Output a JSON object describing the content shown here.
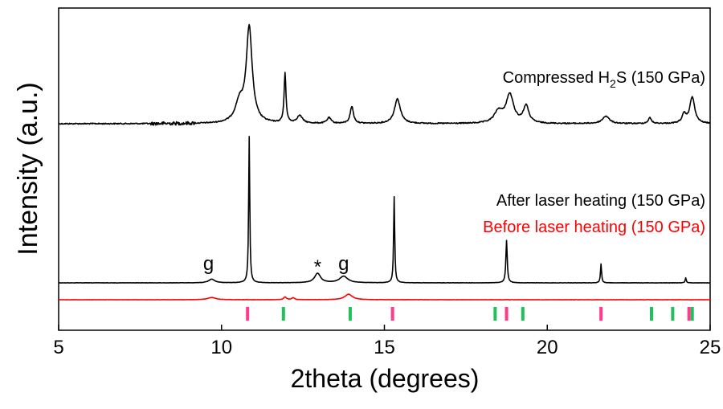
{
  "chart_data": {
    "type": "line",
    "xlabel": "2theta (degrees)",
    "ylabel": "Intensity (a.u.)",
    "xlim": [
      5,
      25
    ],
    "xticks": [
      "5",
      "10",
      "15",
      "20",
      "25"
    ],
    "series": [
      {
        "name": "Compressed H2S (150 GPa)",
        "label_parts": [
          "Compressed H",
          "2",
          "S (150 GPa)"
        ],
        "color": "#000000",
        "baseline": 0,
        "peaks": [
          {
            "x": 10.85,
            "h": 1.0,
            "w": 0.22
          },
          {
            "x": 10.55,
            "h": 0.2,
            "w": 0.3
          },
          {
            "x": 11.95,
            "h": 0.52,
            "w": 0.07
          },
          {
            "x": 12.4,
            "h": 0.08,
            "w": 0.2
          },
          {
            "x": 13.3,
            "h": 0.06,
            "w": 0.15
          },
          {
            "x": 14.0,
            "h": 0.18,
            "w": 0.12
          },
          {
            "x": 15.4,
            "h": 0.26,
            "w": 0.22
          },
          {
            "x": 18.5,
            "h": 0.12,
            "w": 0.3
          },
          {
            "x": 18.85,
            "h": 0.3,
            "w": 0.28
          },
          {
            "x": 19.35,
            "h": 0.18,
            "w": 0.2
          },
          {
            "x": 21.8,
            "h": 0.08,
            "w": 0.25
          },
          {
            "x": 23.15,
            "h": 0.06,
            "w": 0.12
          },
          {
            "x": 24.2,
            "h": 0.09,
            "w": 0.15
          },
          {
            "x": 24.45,
            "h": 0.28,
            "w": 0.18
          }
        ]
      },
      {
        "name": "After laser heating (150 GPa)",
        "color": "#000000",
        "baseline": 0,
        "peaks": [
          {
            "x": 9.7,
            "h": 0.025,
            "w": 0.22
          },
          {
            "x": 10.85,
            "h": 1.0,
            "w": 0.04
          },
          {
            "x": 12.95,
            "h": 0.065,
            "w": 0.22
          },
          {
            "x": 13.75,
            "h": 0.045,
            "w": 0.3
          },
          {
            "x": 15.3,
            "h": 0.59,
            "w": 0.04
          },
          {
            "x": 18.75,
            "h": 0.29,
            "w": 0.05
          },
          {
            "x": 21.65,
            "h": 0.13,
            "w": 0.04
          },
          {
            "x": 24.25,
            "h": 0.035,
            "w": 0.04
          }
        ]
      },
      {
        "name": "Before laser heating (150 GPa)",
        "color": "#ff0000",
        "baseline": 0,
        "peaks": [
          {
            "x": 9.7,
            "h": 0.016,
            "w": 0.3
          },
          {
            "x": 11.95,
            "h": 0.02,
            "w": 0.1
          },
          {
            "x": 12.2,
            "h": 0.014,
            "w": 0.1
          },
          {
            "x": 13.9,
            "h": 0.04,
            "w": 0.28
          }
        ]
      }
    ],
    "annotations": [
      {
        "text": "g",
        "x": 9.6
      },
      {
        "text": "*",
        "x": 12.95
      },
      {
        "text": "g",
        "x": 13.75
      }
    ],
    "reference_ticks": [
      {
        "color": "#ff3c8c",
        "positions": [
          10.8,
          15.25,
          18.75,
          21.65,
          24.35
        ]
      },
      {
        "color": "#22c05a",
        "positions": [
          11.9,
          13.95,
          18.4,
          19.25,
          23.2,
          23.85,
          24.45
        ]
      }
    ]
  }
}
